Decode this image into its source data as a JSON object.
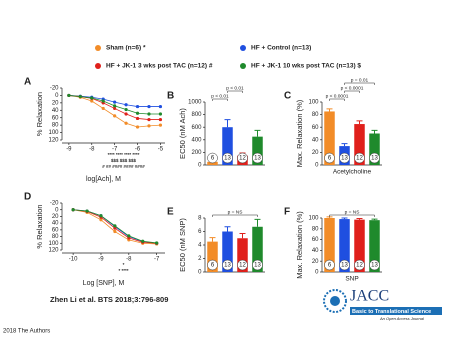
{
  "chart_data": [
    {
      "type": "line",
      "label": "A",
      "y_label": "% Relaxation",
      "x_label": "log[Ach], M",
      "x": [
        -9,
        -8.5,
        -8,
        -7.5,
        -7,
        -6.5,
        -6,
        -5.5,
        -5
      ],
      "series": [
        {
          "name": "Sham (n=6) *",
          "color": "#f28c28",
          "values": [
            0,
            5,
            15,
            35,
            55,
            75,
            85,
            82,
            80
          ]
        },
        {
          "name": "HF + Control (n=13)",
          "color": "#1f4fe0",
          "values": [
            0,
            2,
            5,
            10,
            18,
            25,
            30,
            30,
            30
          ]
        },
        {
          "name": "HF + JK-1  3 wks post TAC (n=12) #",
          "color": "#e0201b",
          "values": [
            0,
            3,
            8,
            20,
            35,
            50,
            62,
            65,
            65
          ]
        },
        {
          "name": "HF + JK-1   10 wks post TAC (n=13) $",
          "color": "#1f8a2c",
          "values": [
            0,
            3,
            7,
            15,
            28,
            38,
            48,
            50,
            50
          ]
        }
      ],
      "xlim": [
        -9.3,
        -4.8
      ],
      "xticks": [
        -9,
        -8,
        -7,
        -6,
        -5
      ],
      "ylim": [
        -20,
        120
      ],
      "yticks": [
        -20,
        0,
        20,
        40,
        60,
        80,
        100,
        120
      ],
      "y_inverted": true,
      "annotations": [
        "**** **** **** ****",
        "$$$  $$$  $$$",
        "#  ##  ####  ####  ####"
      ]
    },
    {
      "type": "bar",
      "label": "B",
      "y_label": "EC50 (nM Ach)",
      "values": [
        50,
        600,
        150,
        450
      ],
      "errors": [
        20,
        120,
        40,
        100
      ],
      "colors": [
        "#f28c28",
        "#1f4fe0",
        "#e0201b",
        "#1f8a2c"
      ],
      "n_labels": [
        "6",
        "13",
        "12",
        "13"
      ],
      "ylim": [
        0,
        1000
      ],
      "yticks": [
        0,
        200,
        400,
        600,
        800,
        1000
      ],
      "annotations": [
        "p < 0.01",
        "p < 0.01"
      ]
    },
    {
      "type": "bar",
      "label": "C",
      "y_label": "Max. Relaxation (%)",
      "x_label": "Acetylcholine",
      "values": [
        85,
        30,
        65,
        50
      ],
      "errors": [
        4,
        4,
        5,
        5
      ],
      "colors": [
        "#f28c28",
        "#1f4fe0",
        "#e0201b",
        "#1f8a2c"
      ],
      "n_labels": [
        "6",
        "13",
        "12",
        "13"
      ],
      "ylim": [
        0,
        100
      ],
      "yticks": [
        0,
        20,
        40,
        60,
        80,
        100
      ],
      "annotations": [
        "p < 0.0001",
        "p < 0.0001",
        "p = 0.01"
      ]
    },
    {
      "type": "line",
      "label": "D",
      "y_label": "% Relaxation",
      "x_label": "Log [SNP], M",
      "x": [
        -10,
        -9.5,
        -9,
        -8.5,
        -8,
        -7.5,
        -7
      ],
      "series": [
        {
          "color": "#f28c28",
          "values": [
            0,
            8,
            30,
            65,
            90,
            100,
            102
          ]
        },
        {
          "color": "#1f4fe0",
          "values": [
            0,
            4,
            18,
            50,
            80,
            95,
            100
          ]
        },
        {
          "color": "#e0201b",
          "values": [
            0,
            5,
            22,
            55,
            84,
            97,
            100
          ]
        },
        {
          "color": "#1f8a2c",
          "values": [
            0,
            4,
            18,
            48,
            78,
            94,
            99
          ]
        }
      ],
      "xlim": [
        -10.4,
        -6.7
      ],
      "xticks": [
        -10,
        -9,
        -8,
        -7
      ],
      "ylim": [
        -20,
        120
      ],
      "yticks": [
        -20,
        0,
        20,
        40,
        60,
        80,
        100,
        120
      ],
      "y_inverted": true,
      "annotations": [
        "*",
        "*  ****"
      ]
    },
    {
      "type": "bar",
      "label": "E",
      "y_label": "EC50 (nM SNP)",
      "values": [
        4.5,
        6,
        5,
        6.7
      ],
      "errors": [
        0.6,
        0.7,
        0.7,
        1.1
      ],
      "colors": [
        "#f28c28",
        "#1f4fe0",
        "#e0201b",
        "#1f8a2c"
      ],
      "n_labels": [
        "6",
        "13",
        "12",
        "13"
      ],
      "ylim": [
        0,
        8
      ],
      "yticks": [
        0,
        2,
        4,
        6,
        8
      ],
      "annotations": [
        "p = NS"
      ]
    },
    {
      "type": "bar",
      "label": "F",
      "y_label": "Max. Relaxation (%)",
      "x_label": "SNP",
      "values": [
        100,
        98,
        97,
        96
      ],
      "errors": [
        2,
        2,
        2,
        2
      ],
      "colors": [
        "#f28c28",
        "#1f4fe0",
        "#e0201b",
        "#1f8a2c"
      ],
      "n_labels": [
        "6",
        "13",
        "12",
        "13"
      ],
      "ylim": [
        0,
        100
      ],
      "yticks": [
        0,
        20,
        40,
        60,
        80,
        100
      ],
      "annotations": [
        "p = NS"
      ]
    }
  ],
  "citation": "Zhen Li et al. BTS 2018;3:796-809",
  "copyright": "2018 The Authors",
  "logo": {
    "name": "JACC",
    "subtitle": "Basic to Translational Science",
    "tagline": "An Open Access Journal"
  }
}
